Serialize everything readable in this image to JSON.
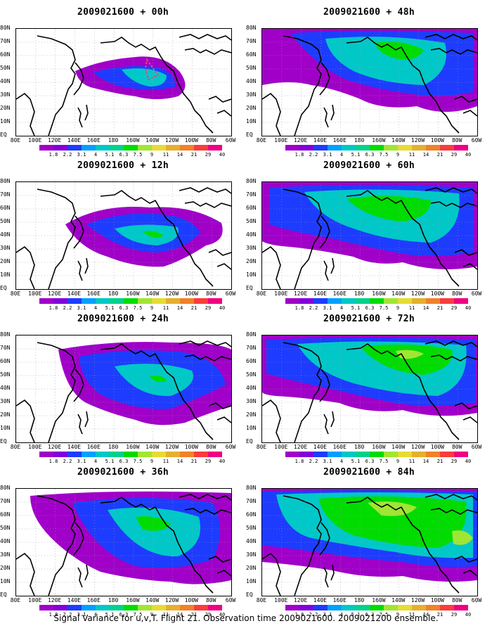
{
  "panels": [
    {
      "title": "2009021600 + 00h"
    },
    {
      "title": "2009021600 + 12h"
    },
    {
      "title": "2009021600 + 24h"
    },
    {
      "title": "2009021600 + 36h"
    },
    {
      "title": "2009021600 + 48h"
    },
    {
      "title": "2009021600 + 60h"
    },
    {
      "title": "2009021600 + 72h"
    },
    {
      "title": "2009021600 + 84h"
    }
  ],
  "lat_labels": [
    "80N",
    "70N",
    "60N",
    "50N",
    "40N",
    "30N",
    "20N",
    "10N",
    "EQ"
  ],
  "lon_labels": [
    "80E",
    "100E",
    "120E",
    "140E",
    "160E",
    "180",
    "160W",
    "140W",
    "120W",
    "100W",
    "80W",
    "60W"
  ],
  "colorbar": {
    "labels": [
      "1.8",
      "2.2",
      "3.1",
      "4",
      "5.1",
      "6.3",
      "7.5",
      "9",
      "11",
      "14",
      "21",
      "29",
      "40"
    ],
    "colors": [
      "#a000c8",
      "#8200dc",
      "#1e3cff",
      "#00a0ff",
      "#00c8c8",
      "#00d28c",
      "#00dc00",
      "#a0e632",
      "#e6dc32",
      "#e6af2d",
      "#f08228",
      "#fa3c3c",
      "#f00082"
    ]
  },
  "caption": "Signal Variance for u,v,T. Flight 21. Observation time 2009021600. 2009021200 ensemble.",
  "colors": {
    "purple": "#a000c8",
    "blue": "#1e3cff",
    "cyan": "#00c8c8",
    "green": "#00dc00",
    "yellowgreen": "#a0e632",
    "flight_track": "#ff3c78"
  }
}
